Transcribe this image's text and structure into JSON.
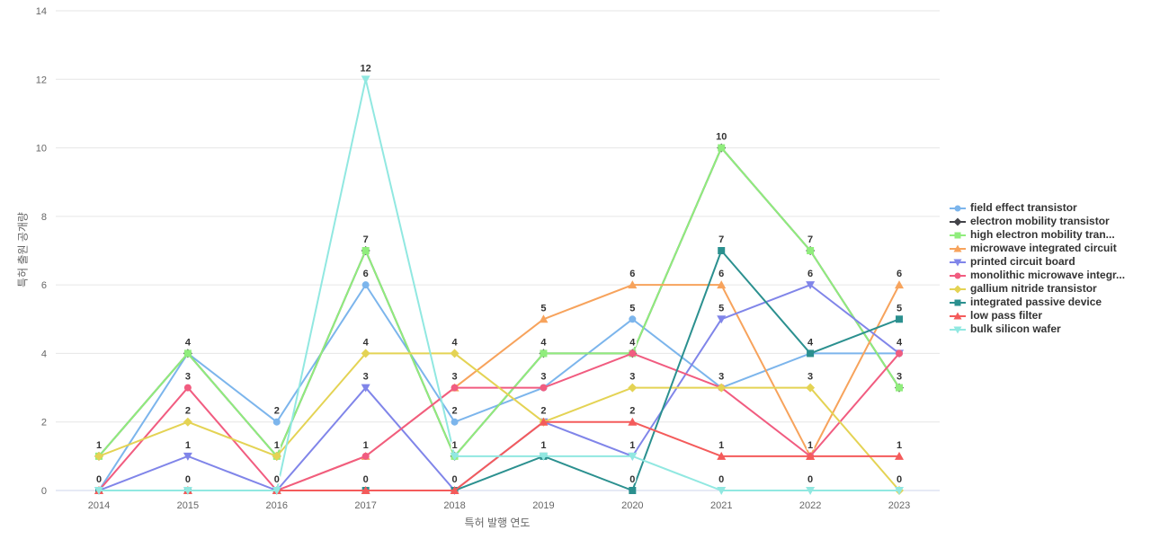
{
  "chart_data": {
    "type": "line",
    "title": "",
    "xlabel": "특허 발행 연도",
    "ylabel": "특허 출원 공개량",
    "x": [
      2014,
      2015,
      2016,
      2017,
      2018,
      2019,
      2020,
      2021,
      2022,
      2023
    ],
    "ylim": [
      0,
      14
    ],
    "yticks": [
      0,
      2,
      4,
      6,
      8,
      10,
      12,
      14
    ],
    "grid": true,
    "legend_position": "right",
    "data_label_color": "#333333",
    "gridline_color": "#e6e6e6",
    "axis_line_color": "#ccd6eb",
    "tick_label_color": "#666666",
    "series": [
      {
        "name": "field effect transistor",
        "color": "#7cb5ec",
        "marker": "circle",
        "values": [
          0,
          4,
          2,
          6,
          2,
          3,
          5,
          3,
          4,
          4
        ]
      },
      {
        "name": "electron mobility transistor",
        "color": "#434348",
        "marker": "diamond",
        "values": [
          1,
          4,
          1,
          7,
          1,
          4,
          4,
          10,
          7,
          3
        ]
      },
      {
        "name": "high electron mobility tran...",
        "color": "#90ed7d",
        "marker": "square",
        "values": [
          1,
          4,
          1,
          7,
          1,
          4,
          4,
          10,
          7,
          3
        ]
      },
      {
        "name": "microwave integrated circuit",
        "color": "#f7a35c",
        "marker": "triangle-up",
        "values": [
          0,
          0,
          0,
          1,
          3,
          5,
          6,
          6,
          1,
          6
        ]
      },
      {
        "name": "printed circuit board",
        "color": "#8085e9",
        "marker": "triangle-down",
        "values": [
          0,
          1,
          0,
          3,
          0,
          2,
          1,
          5,
          6,
          4
        ]
      },
      {
        "name": "monolithic microwave integr...",
        "color": "#f15c80",
        "marker": "circle",
        "values": [
          0,
          3,
          0,
          1,
          3,
          3,
          4,
          3,
          1,
          4
        ]
      },
      {
        "name": "gallium nitride transistor",
        "color": "#e4d354",
        "marker": "diamond",
        "values": [
          1,
          2,
          1,
          4,
          4,
          2,
          3,
          3,
          3,
          0
        ]
      },
      {
        "name": "integrated passive device",
        "color": "#2b908f",
        "marker": "square",
        "values": [
          0,
          0,
          0,
          0,
          0,
          1,
          0,
          7,
          4,
          5
        ]
      },
      {
        "name": "low pass filter",
        "color": "#f45b5b",
        "marker": "triangle-up",
        "values": [
          0,
          0,
          0,
          0,
          0,
          2,
          2,
          1,
          1,
          1
        ]
      },
      {
        "name": "bulk silicon wafer",
        "color": "#91e8e1",
        "marker": "triangle-down",
        "values": [
          0,
          0,
          0,
          12,
          1,
          1,
          1,
          0,
          0,
          0
        ]
      }
    ]
  }
}
